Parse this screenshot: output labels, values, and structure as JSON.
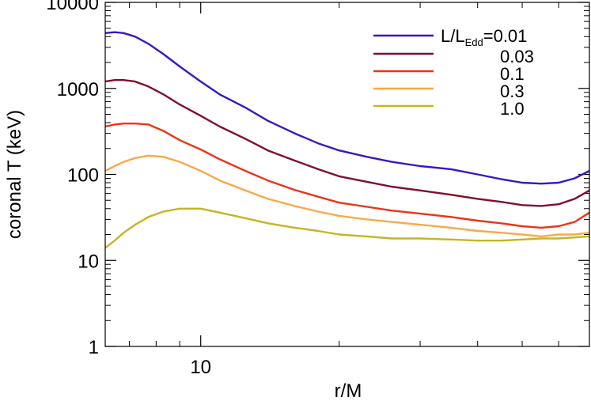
{
  "chart_data": {
    "type": "line",
    "xlabel": "r/M",
    "ylabel": "coronal T (keV)",
    "x_scale": "log",
    "y_scale": "log",
    "xlim": [
      6.2,
      70
    ],
    "ylim": [
      1,
      10000
    ],
    "x_ticks": [
      {
        "value": 10,
        "label": "10"
      }
    ],
    "y_ticks": [
      {
        "value": 1,
        "label": "1"
      },
      {
        "value": 10,
        "label": "10"
      },
      {
        "value": 100,
        "label": "100"
      },
      {
        "value": 1000,
        "label": "1000"
      },
      {
        "value": 10000,
        "label": "10000"
      }
    ],
    "legend_title": {
      "main": "L/L",
      "sub": "Edd",
      "suffix": "=0.01"
    },
    "legend_position": "top-right",
    "series": [
      {
        "name": "0.01",
        "color": "#3a16c4",
        "points": [
          [
            6.2,
            4400
          ],
          [
            6.5,
            4500
          ],
          [
            6.8,
            4400
          ],
          [
            7.2,
            4000
          ],
          [
            7.7,
            3300
          ],
          [
            8.3,
            2500
          ],
          [
            9.0,
            1800
          ],
          [
            10.0,
            1200
          ],
          [
            11.0,
            850
          ],
          [
            12.5,
            600
          ],
          [
            14.0,
            420
          ],
          [
            16.0,
            300
          ],
          [
            18.0,
            230
          ],
          [
            20.0,
            190
          ],
          [
            23.0,
            160
          ],
          [
            26.0,
            140
          ],
          [
            30.0,
            125
          ],
          [
            35.0,
            115
          ],
          [
            40.0,
            100
          ],
          [
            45.0,
            88
          ],
          [
            50.0,
            80
          ],
          [
            55.0,
            78
          ],
          [
            60.0,
            80
          ],
          [
            65.0,
            90
          ],
          [
            70.0,
            110
          ]
        ]
      },
      {
        "name": "0.03",
        "color": "#7e0f2c",
        "points": [
          [
            6.2,
            1200
          ],
          [
            6.5,
            1250
          ],
          [
            6.8,
            1250
          ],
          [
            7.2,
            1200
          ],
          [
            7.7,
            1050
          ],
          [
            8.3,
            850
          ],
          [
            9.0,
            650
          ],
          [
            10.0,
            480
          ],
          [
            11.0,
            360
          ],
          [
            12.5,
            260
          ],
          [
            14.0,
            190
          ],
          [
            16.0,
            145
          ],
          [
            18.0,
            115
          ],
          [
            20.0,
            95
          ],
          [
            23.0,
            82
          ],
          [
            26.0,
            72
          ],
          [
            30.0,
            65
          ],
          [
            35.0,
            58
          ],
          [
            40.0,
            52
          ],
          [
            45.0,
            48
          ],
          [
            50.0,
            44
          ],
          [
            55.0,
            43
          ],
          [
            60.0,
            45
          ],
          [
            65.0,
            52
          ],
          [
            70.0,
            65
          ]
        ]
      },
      {
        "name": "0.1",
        "color": "#ec3418",
        "points": [
          [
            6.2,
            360
          ],
          [
            6.5,
            380
          ],
          [
            6.8,
            390
          ],
          [
            7.2,
            390
          ],
          [
            7.7,
            380
          ],
          [
            8.3,
            320
          ],
          [
            9.0,
            250
          ],
          [
            10.0,
            195
          ],
          [
            11.0,
            150
          ],
          [
            12.5,
            110
          ],
          [
            14.0,
            85
          ],
          [
            16.0,
            66
          ],
          [
            18.0,
            55
          ],
          [
            20.0,
            47
          ],
          [
            23.0,
            42
          ],
          [
            26.0,
            38
          ],
          [
            30.0,
            35
          ],
          [
            35.0,
            32
          ],
          [
            40.0,
            29
          ],
          [
            45.0,
            27
          ],
          [
            50.0,
            25
          ],
          [
            55.0,
            24
          ],
          [
            60.0,
            25
          ],
          [
            65.0,
            28
          ],
          [
            70.0,
            36
          ]
        ]
      },
      {
        "name": "0.3",
        "color": "#f9a949",
        "points": [
          [
            6.2,
            110
          ],
          [
            6.5,
            125
          ],
          [
            6.8,
            140
          ],
          [
            7.2,
            155
          ],
          [
            7.7,
            165
          ],
          [
            8.3,
            160
          ],
          [
            9.0,
            140
          ],
          [
            10.0,
            110
          ],
          [
            11.0,
            85
          ],
          [
            12.5,
            65
          ],
          [
            14.0,
            52
          ],
          [
            16.0,
            43
          ],
          [
            18.0,
            37
          ],
          [
            20.0,
            33
          ],
          [
            23.0,
            30
          ],
          [
            26.0,
            28
          ],
          [
            30.0,
            26
          ],
          [
            35.0,
            24
          ],
          [
            40.0,
            22
          ],
          [
            45.0,
            21
          ],
          [
            50.0,
            20
          ],
          [
            55.0,
            19
          ],
          [
            60.0,
            20
          ],
          [
            65.0,
            20
          ],
          [
            70.0,
            21
          ]
        ]
      },
      {
        "name": "1.0",
        "color": "#c4b522",
        "points": [
          [
            6.2,
            14
          ],
          [
            6.5,
            17
          ],
          [
            6.8,
            21
          ],
          [
            7.2,
            26
          ],
          [
            7.7,
            32
          ],
          [
            8.3,
            37
          ],
          [
            9.0,
            40
          ],
          [
            10.0,
            40
          ],
          [
            11.0,
            36
          ],
          [
            12.5,
            31
          ],
          [
            14.0,
            27
          ],
          [
            16.0,
            24
          ],
          [
            18.0,
            22
          ],
          [
            20.0,
            20
          ],
          [
            23.0,
            19
          ],
          [
            26.0,
            18
          ],
          [
            30.0,
            18
          ],
          [
            35.0,
            17.5
          ],
          [
            40.0,
            17
          ],
          [
            45.0,
            17
          ],
          [
            50.0,
            17.5
          ],
          [
            55.0,
            18
          ],
          [
            60.0,
            18
          ],
          [
            65.0,
            18.5
          ],
          [
            70.0,
            19
          ]
        ]
      }
    ]
  }
}
